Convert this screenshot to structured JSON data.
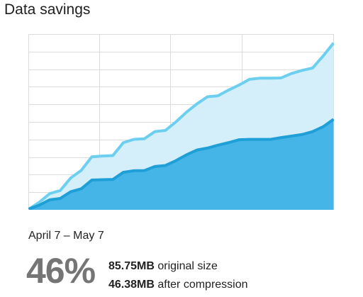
{
  "header": {
    "title": "Data savings"
  },
  "summary": {
    "date_range": "April 7 – May 7",
    "percent": "46%",
    "original_value": "85.75MB",
    "original_label": " original size",
    "compressed_value": "46.38MB",
    "compressed_label": " after compression"
  },
  "colors": {
    "original": "#6DCFF0",
    "original_fill": "#D4EFFA",
    "compressed": "#1E9FD8",
    "compressed_fill": "#45B4E6",
    "grid": "#DCDCDC",
    "percent_text": "#757575"
  },
  "chart_data": {
    "type": "area",
    "title": "",
    "xlabel": "",
    "ylabel": "",
    "ylim": [
      0,
      90
    ],
    "grid": true,
    "legend": "none",
    "series": [
      {
        "values": [
          0.0,
          3.5,
          8.0,
          9.6,
          16.1,
          20.0,
          27.0,
          27.4,
          27.6,
          34.3,
          36.0,
          36.3,
          40.0,
          40.6,
          45.0,
          50.0,
          54.3,
          58.0,
          58.5,
          61.4,
          64.0,
          67.0,
          67.6,
          67.6,
          67.7,
          70.0,
          71.6,
          72.8,
          79.0,
          85.75
        ]
      },
      {
        "values": [
          0.0,
          2.0,
          4.8,
          5.5,
          9.0,
          10.5,
          15.0,
          15.2,
          15.3,
          19.0,
          19.8,
          19.9,
          22.0,
          22.5,
          25.0,
          28.0,
          30.5,
          31.5,
          33.0,
          34.3,
          35.8,
          36.0,
          36.0,
          36.0,
          36.9,
          37.7,
          38.5,
          40.0,
          42.5,
          46.38
        ]
      }
    ]
  }
}
